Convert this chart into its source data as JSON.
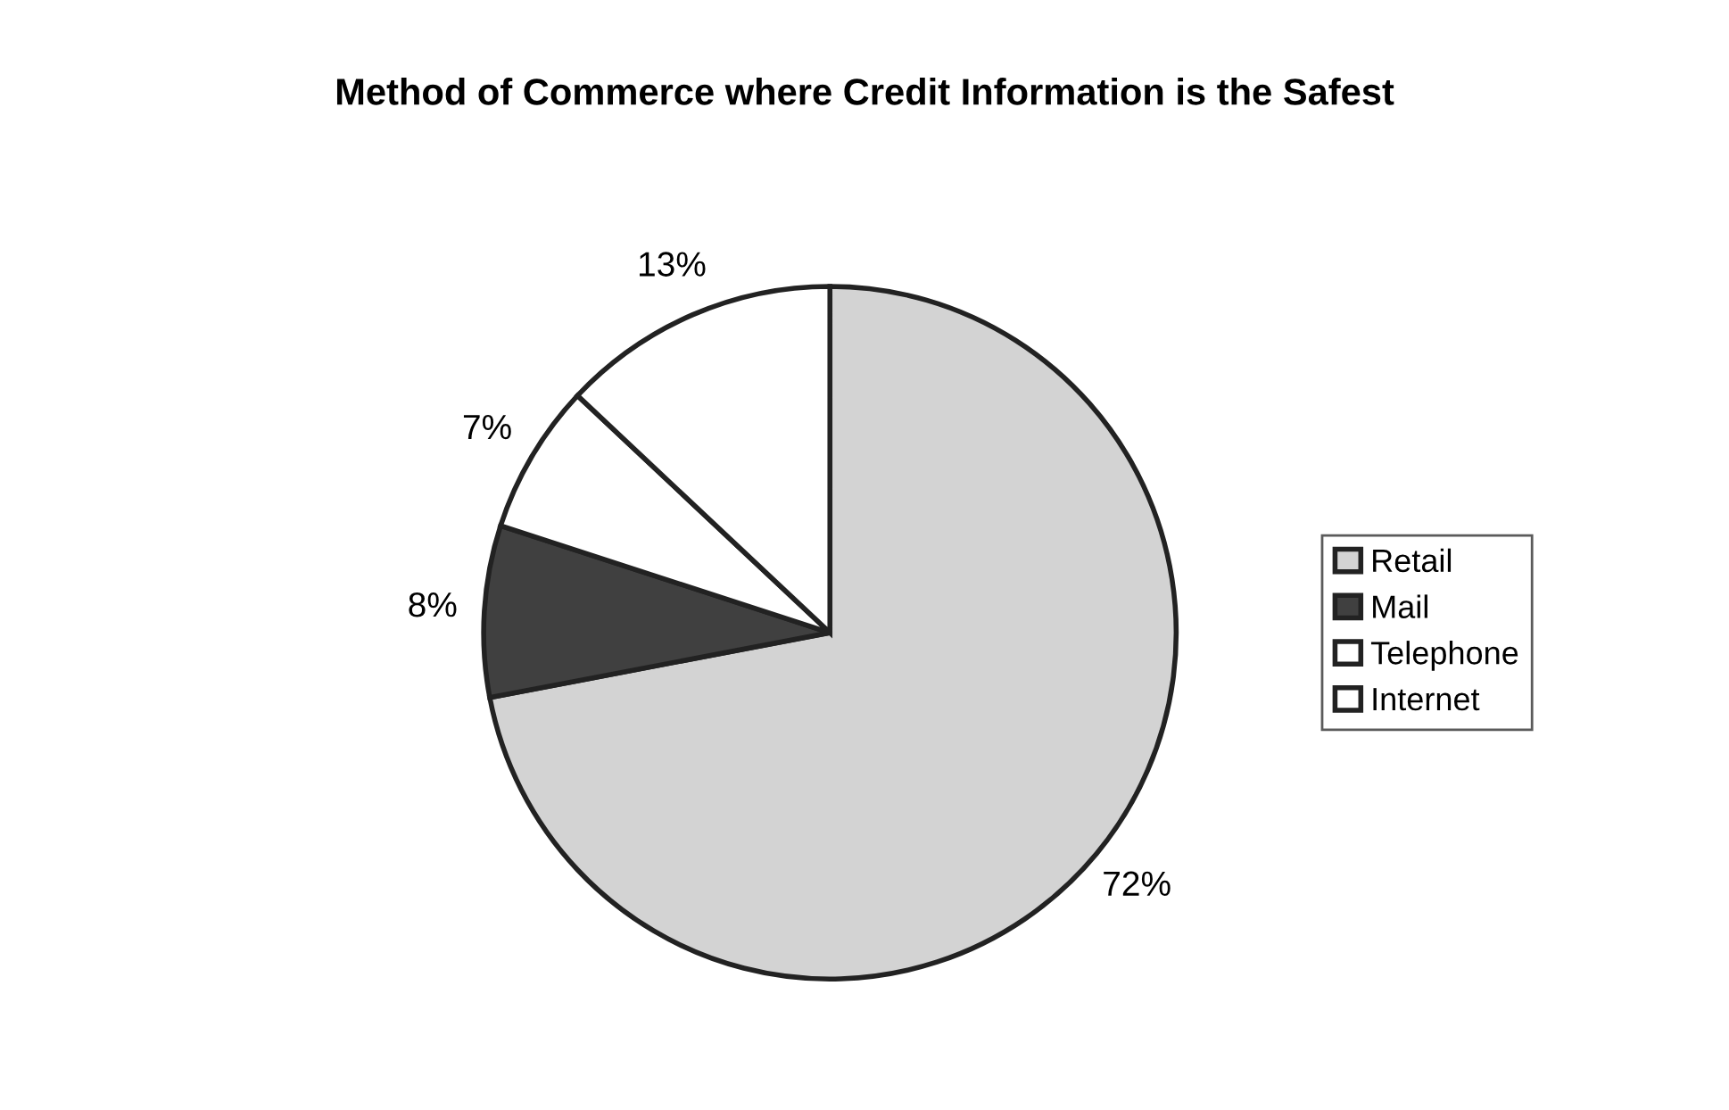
{
  "chart_data": {
    "type": "pie",
    "title": "Method of Commerce where Credit Information is the Safest",
    "categories": [
      "Retail",
      "Mail",
      "Telephone",
      "Internet"
    ],
    "values": [
      72,
      8,
      7,
      13
    ],
    "colors": [
      "#d3d3d3",
      "#404040",
      "#ffffff",
      "#ffffff"
    ],
    "value_labels": [
      "72%",
      "8%",
      "7%",
      "13%"
    ],
    "legend": "right"
  }
}
